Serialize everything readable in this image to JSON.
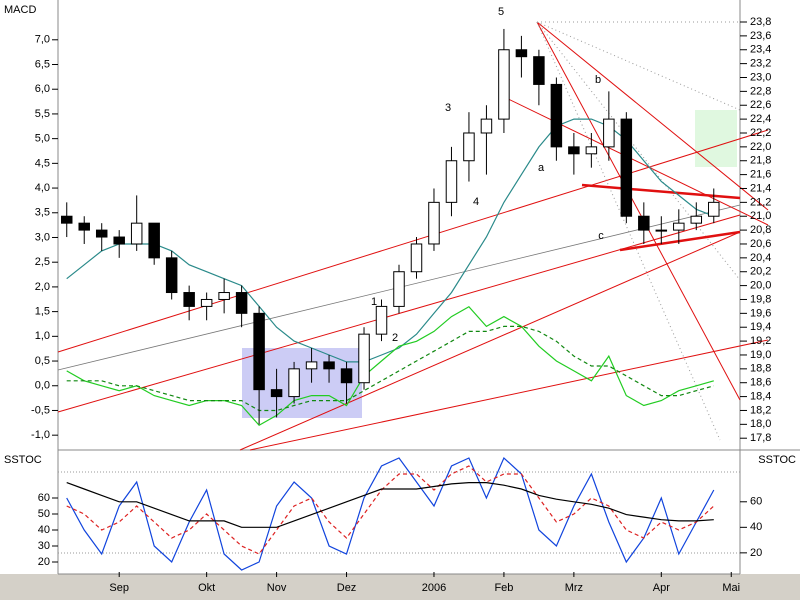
{
  "chart_data": [
    {
      "type": "candlestick",
      "title": "MACD",
      "open": [
        21.0,
        20.9,
        20.8,
        20.7,
        20.6,
        20.9,
        20.4,
        19.9,
        19.7,
        19.8,
        19.9,
        19.6,
        18.5,
        18.4,
        18.8,
        18.9,
        18.8,
        18.6,
        19.3,
        19.7,
        20.2,
        20.6,
        21.2,
        21.8,
        22.2,
        22.4,
        23.4,
        23.3,
        22.9,
        22.0,
        21.9,
        22.0,
        22.4,
        21.0,
        20.8,
        20.8,
        20.9,
        21.0,
        null
      ],
      "high": [
        21.2,
        21.0,
        20.9,
        20.8,
        21.3,
        20.9,
        20.5,
        20.0,
        19.9,
        20.1,
        20.0,
        19.7,
        18.8,
        18.9,
        19.1,
        19.0,
        18.9,
        19.4,
        19.8,
        20.3,
        20.7,
        21.4,
        22.0,
        22.5,
        22.6,
        23.7,
        23.6,
        23.4,
        23.0,
        22.2,
        22.2,
        22.8,
        22.5,
        21.2,
        21.0,
        21.1,
        21.2,
        21.4,
        null
      ],
      "low": [
        20.7,
        20.6,
        20.5,
        20.4,
        20.5,
        20.3,
        19.8,
        19.5,
        19.5,
        19.6,
        19.4,
        18.0,
        18.1,
        18.3,
        18.6,
        18.6,
        18.3,
        18.5,
        19.2,
        19.6,
        20.1,
        20.5,
        21.0,
        21.5,
        21.6,
        22.2,
        23.0,
        22.6,
        21.8,
        21.6,
        21.7,
        21.8,
        20.9,
        20.6,
        20.6,
        20.6,
        20.8,
        20.9,
        null
      ],
      "close": [
        20.9,
        20.8,
        20.7,
        20.6,
        20.9,
        20.4,
        19.9,
        19.7,
        19.8,
        19.9,
        19.6,
        18.5,
        18.4,
        18.8,
        18.9,
        18.8,
        18.6,
        19.3,
        19.7,
        20.2,
        20.6,
        21.2,
        21.8,
        22.2,
        22.4,
        23.4,
        23.3,
        22.9,
        22.0,
        21.9,
        22.0,
        22.4,
        21.0,
        20.8,
        20.8,
        20.9,
        21.0,
        21.2,
        null
      ],
      "price_axis": "y2",
      "series": [
        {
          "color": "#2a8a8a",
          "axis": "y2",
          "values": [
            20.1,
            20.3,
            20.5,
            20.6,
            20.6,
            20.6,
            20.5,
            20.3,
            20.2,
            20.1,
            20.0,
            19.7,
            19.4,
            19.2,
            19.1,
            19.0,
            18.9,
            18.9,
            19.0,
            19.1,
            19.3,
            19.6,
            19.9,
            20.3,
            20.7,
            21.2,
            21.6,
            22.0,
            22.3,
            22.4,
            22.4,
            22.3,
            22.1,
            21.8,
            21.5,
            21.3,
            21.1,
            21.0,
            null
          ]
        },
        {
          "color": "#22cc22",
          "values": [
            0.3,
            0.1,
            0.0,
            -0.1,
            0.0,
            -0.2,
            -0.3,
            -0.4,
            -0.3,
            -0.3,
            -0.4,
            -0.8,
            -0.6,
            -0.3,
            -0.2,
            -0.2,
            -0.4,
            0.2,
            0.5,
            0.8,
            0.9,
            1.1,
            1.4,
            1.6,
            1.2,
            1.4,
            1.2,
            0.8,
            0.5,
            0.3,
            0.1,
            0.6,
            -0.2,
            -0.4,
            -0.3,
            -0.1,
            0.0,
            0.1,
            null
          ]
        },
        {
          "color": "#118811",
          "dash": true,
          "values": [
            0.1,
            0.1,
            0.1,
            0.0,
            0.0,
            -0.1,
            -0.2,
            -0.3,
            -0.3,
            -0.3,
            -0.3,
            -0.5,
            -0.5,
            -0.4,
            -0.3,
            -0.3,
            -0.3,
            -0.1,
            0.1,
            0.3,
            0.5,
            0.7,
            0.9,
            1.1,
            1.1,
            1.2,
            1.2,
            1.1,
            0.9,
            0.6,
            0.4,
            0.4,
            0.2,
            0.0,
            -0.2,
            -0.2,
            -0.1,
            0.0,
            null
          ]
        }
      ],
      "ylim": [
        -1.3,
        7.36
      ],
      "yticks": [
        {
          "value": -1.0,
          "label": "-1,0"
        },
        {
          "value": -0.5,
          "label": "-0,5"
        },
        {
          "value": 0.0,
          "label": "0,0"
        },
        {
          "value": 0.5,
          "label": "0,5"
        },
        {
          "value": 1.0,
          "label": "1,0"
        },
        {
          "value": 1.5,
          "label": "1,5"
        },
        {
          "value": 2.0,
          "label": "2,0"
        },
        {
          "value": 2.5,
          "label": "2,5"
        },
        {
          "value": 3.0,
          "label": "3,0"
        },
        {
          "value": 3.5,
          "label": "3,5"
        },
        {
          "value": 4.0,
          "label": "4,0"
        },
        {
          "value": 4.5,
          "label": "4,5"
        },
        {
          "value": 5.0,
          "label": "5,0"
        },
        {
          "value": 5.5,
          "label": "5,5"
        },
        {
          "value": 6.0,
          "label": "6,0"
        },
        {
          "value": 6.5,
          "label": "6,5"
        },
        {
          "value": 7.0,
          "label": "7,0"
        }
      ],
      "y2lim": [
        17.63,
        23.8
      ],
      "y2ticks": [
        {
          "value": 17.8,
          "label": "17,8"
        },
        {
          "value": 18.0,
          "label": "18,0"
        },
        {
          "value": 18.2,
          "label": "18,2"
        },
        {
          "value": 18.4,
          "label": "18,4"
        },
        {
          "value": 18.6,
          "label": "18,6"
        },
        {
          "value": 18.8,
          "label": "18,8"
        },
        {
          "value": 19.0,
          "label": "19,0"
        },
        {
          "value": 19.2,
          "label": "19,2"
        },
        {
          "value": 19.4,
          "label": "19,4"
        },
        {
          "value": 19.6,
          "label": "19,6"
        },
        {
          "value": 19.8,
          "label": "19,8"
        },
        {
          "value": 20.0,
          "label": "20,0"
        },
        {
          "value": 20.2,
          "label": "20,2"
        },
        {
          "value": 20.4,
          "label": "20,4"
        },
        {
          "value": 20.6,
          "label": "20,6"
        },
        {
          "value": 20.8,
          "label": "20,8"
        },
        {
          "value": 21.0,
          "label": "21,0"
        },
        {
          "value": 21.2,
          "label": "21,2"
        },
        {
          "value": 21.4,
          "label": "21,4"
        },
        {
          "value": 21.6,
          "label": "21,6"
        },
        {
          "value": 21.8,
          "label": "21,8"
        },
        {
          "value": 22.0,
          "label": "22,0"
        },
        {
          "value": 22.2,
          "label": "22,2"
        },
        {
          "value": 22.4,
          "label": "22,4"
        },
        {
          "value": 22.6,
          "label": "22,6"
        },
        {
          "value": 22.8,
          "label": "22,8"
        },
        {
          "value": 23.0,
          "label": "23,0"
        },
        {
          "value": 23.2,
          "label": "23,2"
        },
        {
          "value": 23.4,
          "label": "23,4"
        },
        {
          "value": 23.6,
          "label": "23,6"
        },
        {
          "value": 23.8,
          "label": "23,8"
        }
      ],
      "annotations": [
        "1",
        "2",
        "3",
        "4",
        "5",
        "a",
        "b",
        "c"
      ]
    },
    {
      "type": "line",
      "title": "SSTOC",
      "categories": [
        null,
        null,
        null,
        "Sep",
        null,
        null,
        null,
        null,
        "Okt",
        null,
        null,
        null,
        "Nov",
        null,
        null,
        null,
        "Dez",
        null,
        null,
        null,
        null,
        "2006",
        null,
        null,
        null,
        "Feb",
        null,
        null,
        null,
        "Mrz",
        null,
        null,
        null,
        null,
        "Apr",
        null,
        null,
        null,
        "Mai"
      ],
      "series": [
        {
          "color": "#1144dd",
          "values": [
            60,
            40,
            25,
            55,
            70,
            30,
            20,
            45,
            65,
            25,
            15,
            20,
            55,
            70,
            60,
            30,
            25,
            60,
            80,
            85,
            70,
            55,
            80,
            85,
            60,
            85,
            75,
            40,
            30,
            55,
            75,
            45,
            20,
            35,
            60,
            25,
            45,
            65,
            null
          ]
        },
        {
          "color": "#dd2222",
          "dash": true,
          "values": [
            55,
            50,
            40,
            45,
            55,
            45,
            35,
            40,
            50,
            40,
            30,
            25,
            40,
            55,
            60,
            45,
            35,
            50,
            65,
            75,
            75,
            65,
            75,
            80,
            70,
            75,
            75,
            60,
            45,
            50,
            60,
            55,
            40,
            35,
            45,
            40,
            45,
            55,
            null
          ]
        },
        {
          "color": "#000000",
          "axis": "y2",
          "values": [
            75,
            70,
            65,
            60,
            60,
            55,
            50,
            45,
            45,
            45,
            40,
            40,
            40,
            45,
            50,
            55,
            60,
            65,
            70,
            70,
            70,
            72,
            74,
            75,
            75,
            73,
            70,
            65,
            62,
            60,
            58,
            55,
            50,
            48,
            46,
            45,
            45,
            46,
            null
          ]
        }
      ],
      "ylim": [
        13.75,
        88.75
      ],
      "yticks": [
        20,
        30,
        40,
        50,
        60
      ],
      "y2lim": [
        5,
        99
      ],
      "y2ticks": [
        20,
        40,
        60
      ]
    }
  ]
}
